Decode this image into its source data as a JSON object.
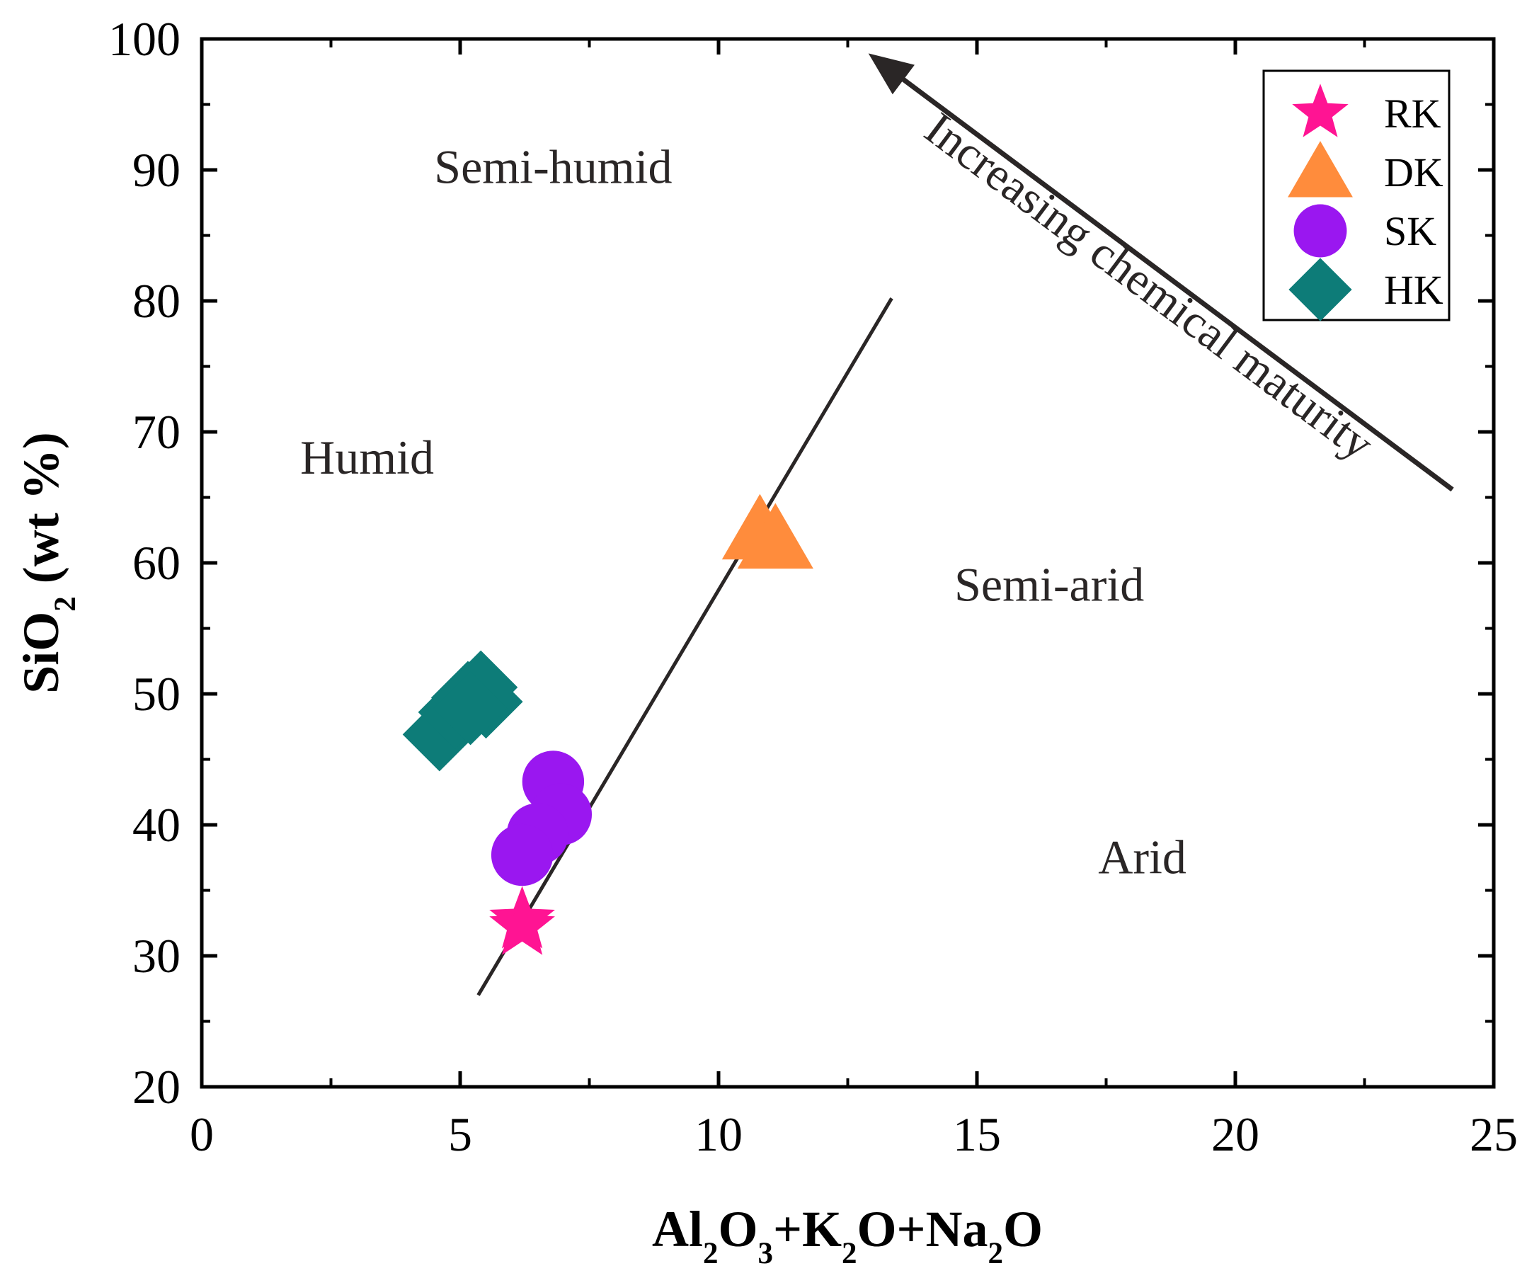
{
  "chart_data": {
    "type": "scatter",
    "title": "",
    "xlabel": "Al₂O₃+K₂O+Na₂O",
    "xlabel_parts": [
      {
        "text": "Al",
        "sub": false
      },
      {
        "text": "2",
        "sub": true
      },
      {
        "text": "O",
        "sub": false
      },
      {
        "text": "3",
        "sub": true
      },
      {
        "text": "+K",
        "sub": false
      },
      {
        "text": "2",
        "sub": true
      },
      {
        "text": "O+Na",
        "sub": false
      },
      {
        "text": "2",
        "sub": true
      },
      {
        "text": "O",
        "sub": false
      }
    ],
    "ylabel": "SiO₂ (wt %)",
    "ylabel_parts": [
      {
        "text": "SiO",
        "sub": false
      },
      {
        "text": "2",
        "sub": true
      },
      {
        "text": " (wt %)",
        "sub": false
      }
    ],
    "xlim": [
      0,
      25
    ],
    "ylim": [
      20,
      100
    ],
    "xticks": [
      0,
      5,
      10,
      15,
      20,
      25
    ],
    "yticks": [
      20,
      30,
      40,
      50,
      60,
      70,
      80,
      90,
      100
    ],
    "xminor": [
      2.5,
      7.5,
      12.5,
      17.5,
      22.5
    ],
    "yminor": [
      25,
      35,
      45,
      55,
      65,
      75,
      85,
      95
    ],
    "grid": false,
    "legend_position": "top-right",
    "series": [
      {
        "name": "RK",
        "marker": "star",
        "color": "#ff1493",
        "points": [
          [
            6.2,
            32.7
          ],
          [
            6.2,
            32.2
          ]
        ]
      },
      {
        "name": "DK",
        "marker": "triangle",
        "color": "#ff8c3c",
        "points": [
          [
            10.8,
            62.5
          ],
          [
            11.1,
            61.8
          ]
        ]
      },
      {
        "name": "SK",
        "marker": "circle",
        "color": "#9a17f0",
        "points": [
          [
            6.8,
            43.3
          ],
          [
            6.95,
            40.8
          ],
          [
            6.5,
            39.3
          ],
          [
            6.2,
            37.7
          ]
        ]
      },
      {
        "name": "HK",
        "marker": "diamond",
        "color": "#0d7c78",
        "points": [
          [
            4.6,
            46.9
          ],
          [
            4.9,
            48.6
          ],
          [
            5.15,
            49.7
          ],
          [
            5.4,
            50.5
          ],
          [
            5.5,
            49.4
          ],
          [
            5.2,
            48.9
          ]
        ]
      }
    ],
    "boundary_line": {
      "x": [
        5.35,
        13.35
      ],
      "y": [
        27.0,
        80.2
      ]
    },
    "regions": [
      {
        "label": "Semi-humid",
        "x": 6.8,
        "y": 90.2
      },
      {
        "label": "Humid",
        "x": 3.2,
        "y": 68.0
      },
      {
        "label": "Semi-arid",
        "x": 16.4,
        "y": 58.3
      },
      {
        "label": "Arid",
        "x": 18.2,
        "y": 37.5
      }
    ],
    "arrow": {
      "label": "Increasing chemical maturity",
      "from": [
        24.2,
        65.6
      ],
      "to": [
        12.9,
        98.9
      ]
    }
  }
}
